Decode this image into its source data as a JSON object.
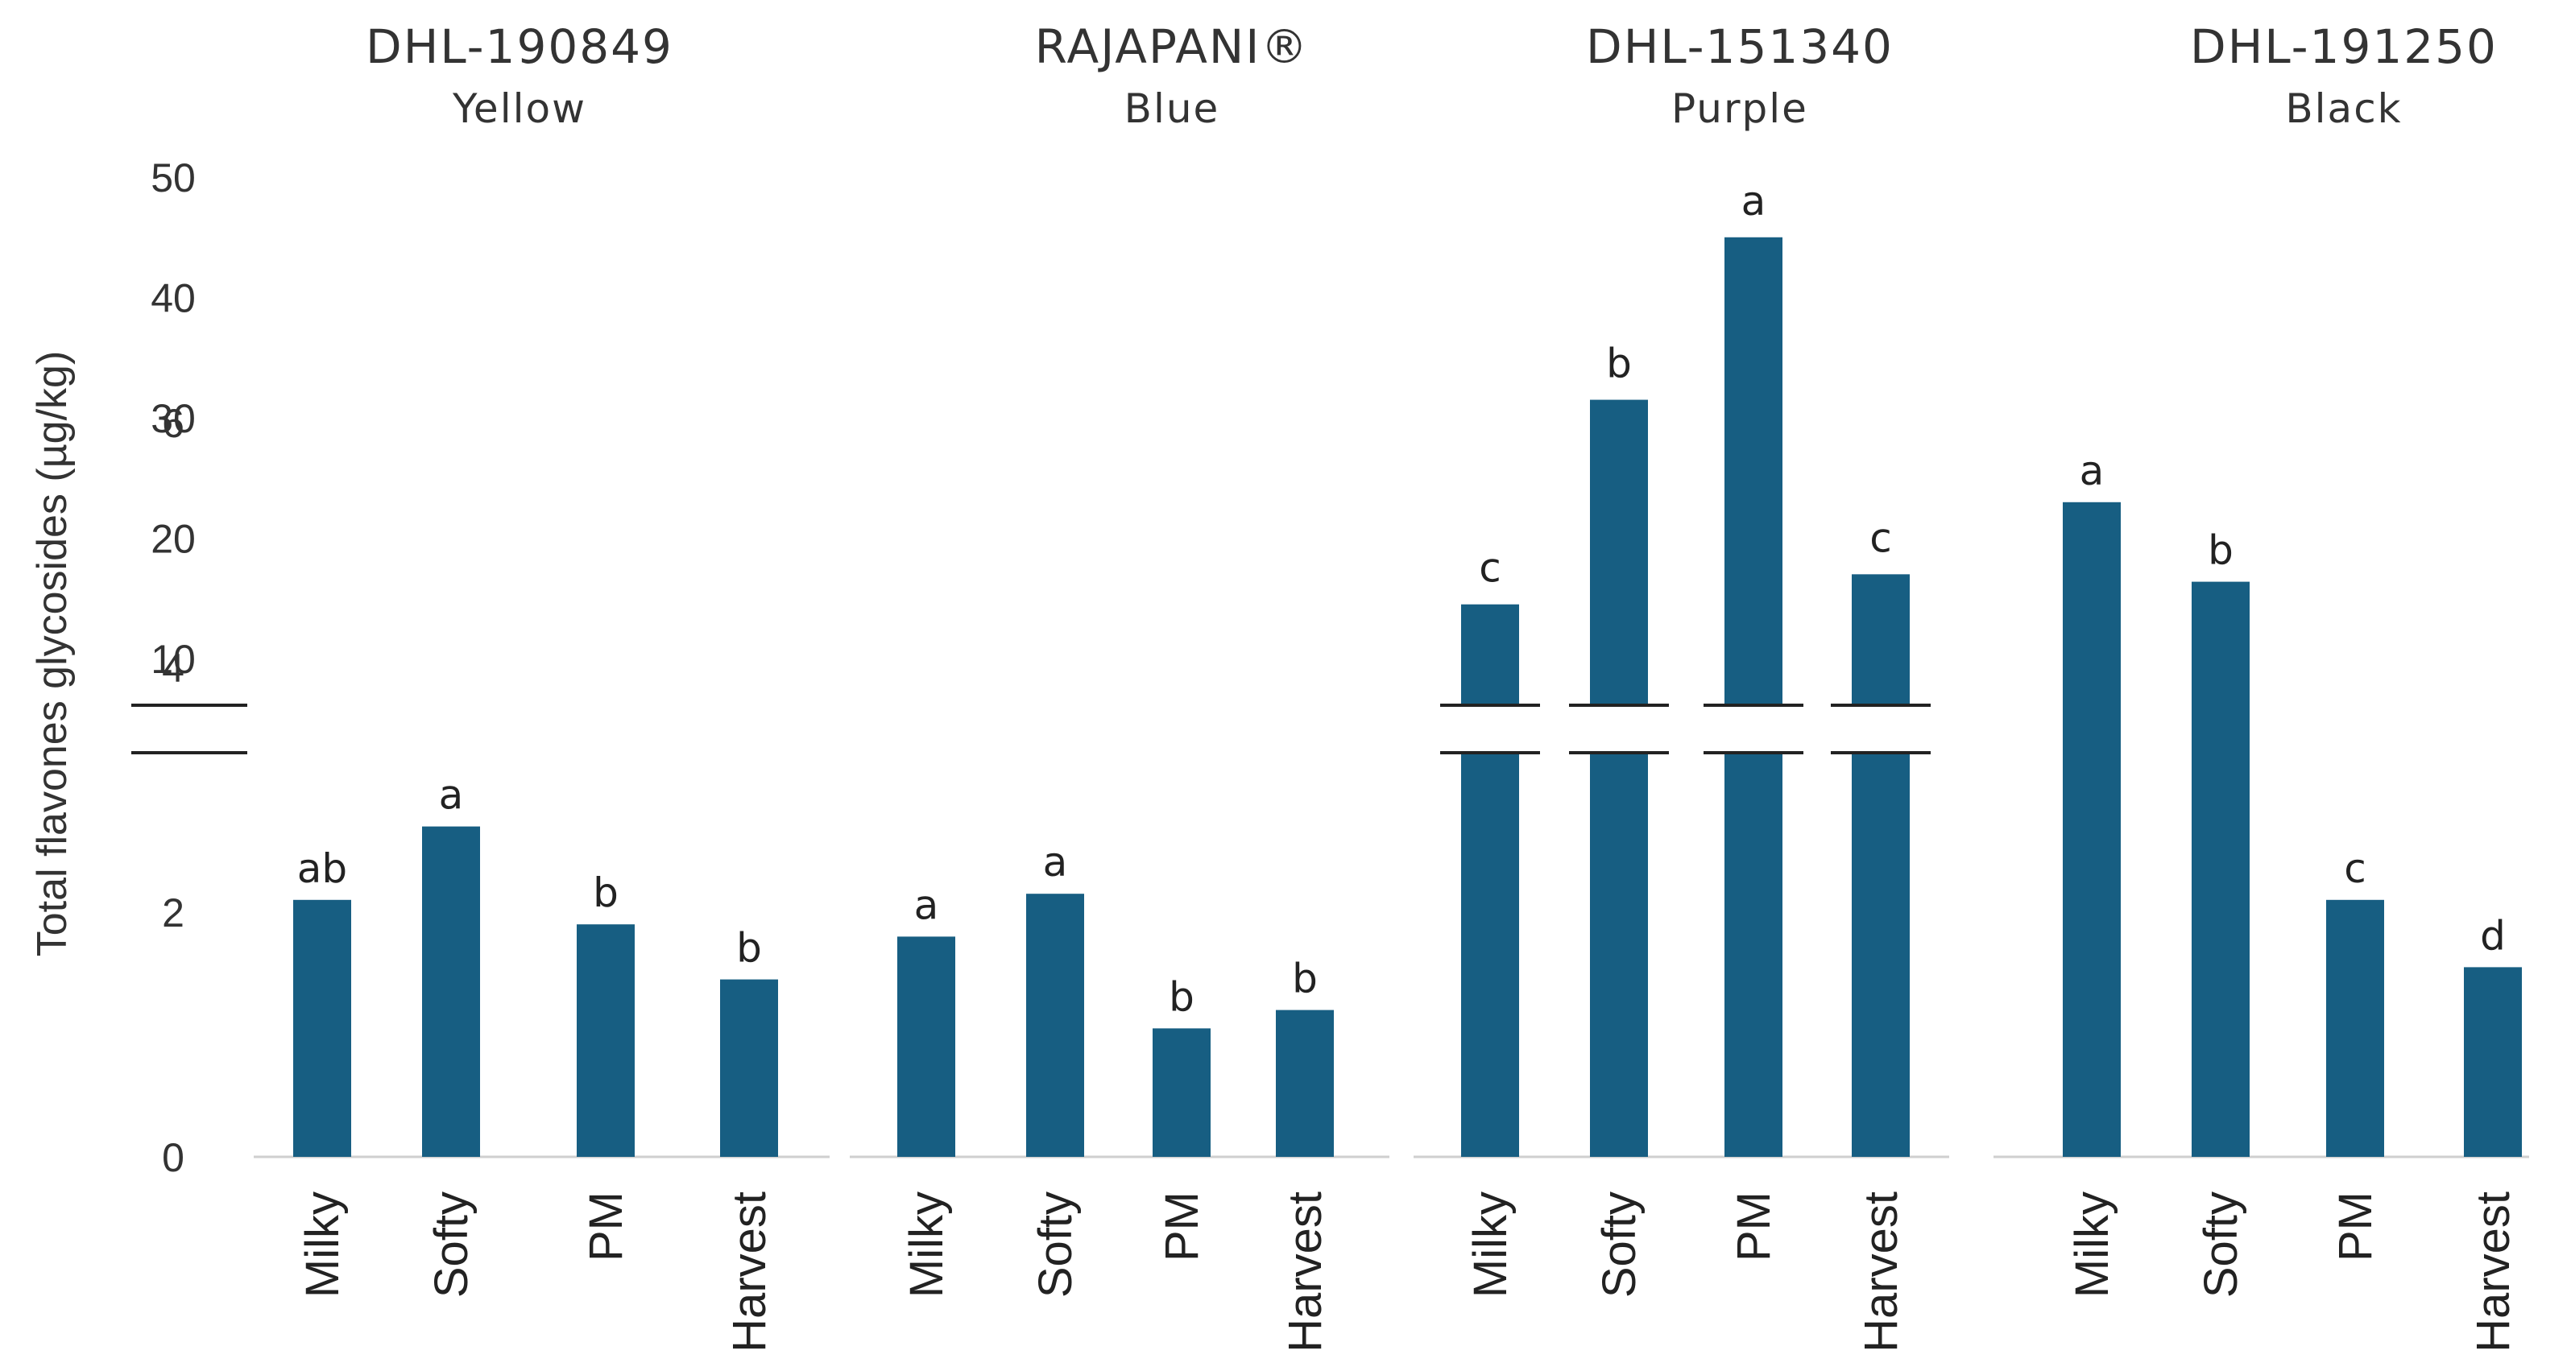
{
  "chart_data": {
    "type": "bar",
    "ylabel": "Total flavones glycosides (µg/kg)",
    "y_ticks_lower": [
      "0",
      "2",
      "4",
      "6"
    ],
    "y_ticks_upper": [
      "10",
      "20",
      "30",
      "40",
      "50"
    ],
    "lower_range": [
      0,
      6.6
    ],
    "upper_range": [
      6.6,
      50
    ],
    "categories": [
      "Milky",
      "Softy",
      "PM",
      "Harvest"
    ],
    "bar_color": "#175e82",
    "panels": [
      {
        "title": "DHL-190849",
        "subtitle": "Yellow",
        "values": [
          2.1,
          2.7,
          1.9,
          1.45
        ],
        "labels": [
          "ab",
          "a",
          "b",
          "b"
        ]
      },
      {
        "title": "RAJAPANI®",
        "subtitle": "Blue",
        "values": [
          1.8,
          2.15,
          1.05,
          1.2
        ],
        "labels": [
          "a",
          "a",
          "b",
          "b"
        ]
      },
      {
        "title": "DHL-151340",
        "subtitle": "Purple",
        "values": [
          14.5,
          31.5,
          45,
          17
        ],
        "labels": [
          "c",
          "b",
          "a",
          "c"
        ]
      },
      {
        "title": "DHL-191250",
        "subtitle": "Black",
        "values": [
          5.35,
          4.7,
          2.1,
          1.55
        ],
        "labels": [
          "a",
          "b",
          "c",
          "d"
        ]
      }
    ]
  }
}
